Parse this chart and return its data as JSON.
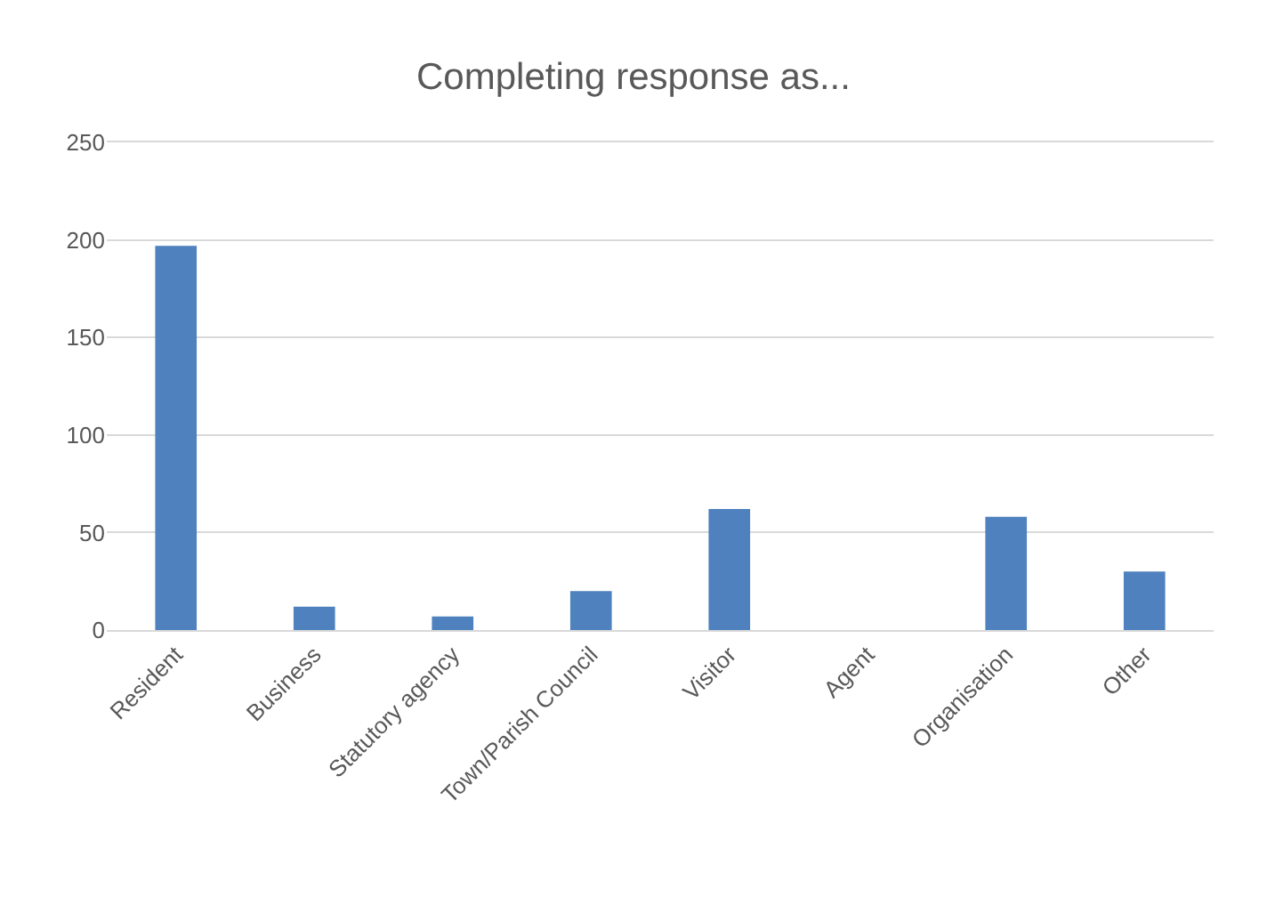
{
  "chart_data": {
    "type": "bar",
    "title": "Completing response as...",
    "categories": [
      "Resident",
      "Business",
      "Statutory agency",
      "Town/Parish Council",
      "Visitor",
      "Agent",
      "Organisation",
      "Other"
    ],
    "values": [
      197,
      12,
      7,
      20,
      62,
      0,
      58,
      30
    ],
    "color": "#4e81bd",
    "ylim": [
      0,
      250
    ],
    "yticks": [
      0,
      50,
      100,
      150,
      200,
      250
    ],
    "grid": "y"
  }
}
